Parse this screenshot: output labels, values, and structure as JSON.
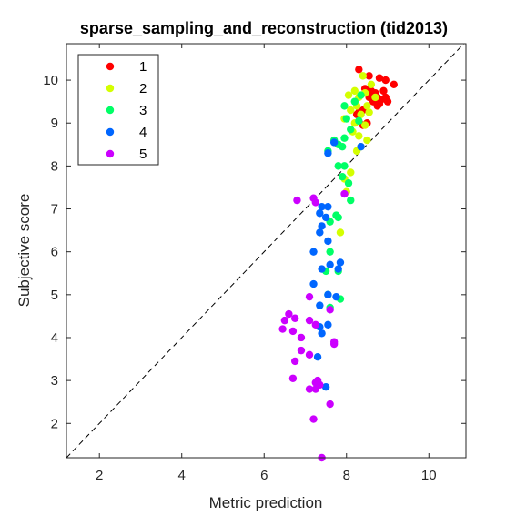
{
  "chart_data": {
    "type": "scatter",
    "title": "sparse_sampling_and_reconstruction (tid2013)",
    "xlabel": "Metric prediction",
    "ylabel": "Subjective score",
    "xlim": [
      1.2,
      10.9
    ],
    "ylim": [
      1.2,
      10.85
    ],
    "xticks": [
      2,
      4,
      6,
      8,
      10
    ],
    "yticks": [
      2,
      3,
      4,
      5,
      6,
      7,
      8,
      9,
      10
    ],
    "grid": false,
    "legend_position": "top-left",
    "reference_line": "y = x (dashed)",
    "series": [
      {
        "name": "1",
        "color": "#ff0000",
        "points": [
          [
            8.3,
            10.25
          ],
          [
            8.55,
            10.1
          ],
          [
            8.8,
            10.05
          ],
          [
            8.95,
            10.0
          ],
          [
            9.15,
            9.9
          ],
          [
            8.45,
            9.8
          ],
          [
            8.6,
            9.75
          ],
          [
            8.7,
            9.7
          ],
          [
            8.9,
            9.75
          ],
          [
            8.55,
            9.6
          ],
          [
            8.75,
            9.6
          ],
          [
            8.85,
            9.55
          ],
          [
            8.95,
            9.6
          ],
          [
            8.65,
            9.5
          ],
          [
            8.8,
            9.45
          ],
          [
            9.0,
            9.5
          ],
          [
            8.75,
            9.4
          ],
          [
            8.4,
            9.3
          ],
          [
            8.3,
            9.25
          ],
          [
            8.25,
            9.2
          ],
          [
            8.5,
            9.0
          ],
          [
            8.4,
            8.95
          ]
        ]
      },
      {
        "name": "2",
        "color": "#d4ff00",
        "points": [
          [
            8.4,
            10.1
          ],
          [
            8.6,
            9.9
          ],
          [
            8.2,
            9.75
          ],
          [
            8.45,
            9.7
          ],
          [
            8.05,
            9.65
          ],
          [
            8.3,
            9.6
          ],
          [
            8.7,
            9.6
          ],
          [
            8.25,
            9.4
          ],
          [
            8.5,
            9.4
          ],
          [
            8.1,
            9.3
          ],
          [
            8.35,
            9.2
          ],
          [
            8.55,
            9.25
          ],
          [
            7.95,
            9.1
          ],
          [
            8.2,
            9.0
          ],
          [
            8.45,
            8.95
          ],
          [
            8.15,
            8.8
          ],
          [
            8.3,
            8.7
          ],
          [
            8.5,
            8.6
          ],
          [
            8.35,
            8.45
          ],
          [
            8.1,
            7.85
          ],
          [
            7.95,
            7.7
          ],
          [
            7.85,
            6.45
          ],
          [
            8.0,
            7.4
          ],
          [
            8.25,
            8.35
          ]
        ]
      },
      {
        "name": "3",
        "color": "#00ff66",
        "points": [
          [
            8.35,
            9.65
          ],
          [
            7.95,
            9.4
          ],
          [
            8.2,
            9.5
          ],
          [
            8.0,
            9.1
          ],
          [
            8.3,
            9.05
          ],
          [
            8.1,
            8.85
          ],
          [
            7.95,
            8.65
          ],
          [
            7.7,
            8.6
          ],
          [
            7.8,
            8.5
          ],
          [
            7.9,
            8.45
          ],
          [
            7.55,
            8.35
          ],
          [
            7.8,
            8.0
          ],
          [
            7.95,
            8.0
          ],
          [
            7.9,
            7.75
          ],
          [
            8.05,
            7.6
          ],
          [
            8.1,
            7.2
          ],
          [
            7.75,
            6.85
          ],
          [
            7.8,
            6.8
          ],
          [
            7.6,
            6.7
          ],
          [
            7.6,
            6.0
          ],
          [
            7.5,
            5.55
          ],
          [
            7.8,
            5.55
          ],
          [
            7.55,
            5.0
          ],
          [
            7.85,
            4.9
          ],
          [
            7.6,
            4.7
          ]
        ]
      },
      {
        "name": "4",
        "color": "#0066ff",
        "points": [
          [
            8.35,
            8.45
          ],
          [
            7.55,
            8.3
          ],
          [
            7.7,
            8.55
          ],
          [
            7.4,
            7.05
          ],
          [
            7.55,
            7.05
          ],
          [
            7.35,
            6.9
          ],
          [
            7.5,
            6.8
          ],
          [
            7.4,
            6.6
          ],
          [
            7.35,
            6.45
          ],
          [
            7.55,
            6.25
          ],
          [
            7.2,
            6.0
          ],
          [
            7.6,
            5.7
          ],
          [
            7.4,
            5.6
          ],
          [
            7.8,
            5.6
          ],
          [
            7.85,
            5.75
          ],
          [
            7.2,
            5.25
          ],
          [
            7.55,
            5.0
          ],
          [
            7.35,
            4.75
          ],
          [
            7.75,
            4.95
          ],
          [
            7.55,
            4.3
          ],
          [
            7.35,
            4.25
          ],
          [
            7.4,
            4.1
          ],
          [
            7.3,
            3.55
          ],
          [
            7.5,
            2.85
          ]
        ]
      },
      {
        "name": "5",
        "color": "#cc00ff",
        "points": [
          [
            7.95,
            7.35
          ],
          [
            7.2,
            7.25
          ],
          [
            7.25,
            7.15
          ],
          [
            6.8,
            7.2
          ],
          [
            7.1,
            4.95
          ],
          [
            6.6,
            4.55
          ],
          [
            6.75,
            4.45
          ],
          [
            6.5,
            4.4
          ],
          [
            6.45,
            4.2
          ],
          [
            6.7,
            4.15
          ],
          [
            7.1,
            4.4
          ],
          [
            7.25,
            4.3
          ],
          [
            6.9,
            4.0
          ],
          [
            7.6,
            4.65
          ],
          [
            6.9,
            3.7
          ],
          [
            7.7,
            3.85
          ],
          [
            7.7,
            3.9
          ],
          [
            7.1,
            3.6
          ],
          [
            6.75,
            3.45
          ],
          [
            7.3,
            3.0
          ],
          [
            7.25,
            2.95
          ],
          [
            6.7,
            3.05
          ],
          [
            7.1,
            2.8
          ],
          [
            7.25,
            2.8
          ],
          [
            7.35,
            2.9
          ],
          [
            7.6,
            2.45
          ],
          [
            7.2,
            2.1
          ],
          [
            7.4,
            1.2
          ]
        ]
      }
    ]
  }
}
